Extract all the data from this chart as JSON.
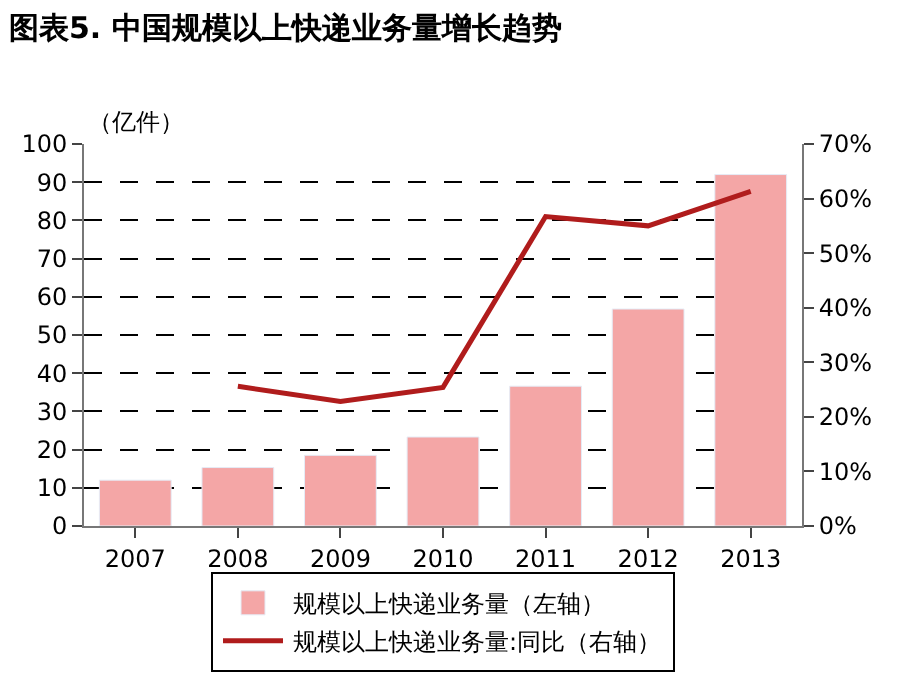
{
  "chart_data": {
    "type": "bar",
    "title": "图表5. 中国规模以上快递业务量增长趋势",
    "ylabel": "（亿件）",
    "categories": [
      "2007",
      "2008",
      "2009",
      "2010",
      "2011",
      "2012",
      "2013"
    ],
    "series": [
      {
        "name": "规模以上快递业务量（左轴）",
        "color": "#f4a6a6",
        "values": [
          12.0,
          15.3,
          18.5,
          23.3,
          36.6,
          56.8,
          92.0
        ]
      },
      {
        "name": "规模以上快递业务量:同比（右轴）",
        "type": "line",
        "axis": "y2",
        "color": "#b01c1c",
        "values": [
          null,
          25.6,
          22.8,
          25.4,
          56.7,
          55.0,
          61.3
        ]
      }
    ],
    "ylim": [
      0,
      100
    ],
    "yticks": [
      0,
      10,
      20,
      30,
      40,
      50,
      60,
      70,
      80,
      90,
      100
    ],
    "y2lim": [
      0,
      70
    ],
    "y2ticks": [
      {
        "value": 0,
        "label": "0%"
      },
      {
        "value": 10,
        "label": "10%"
      },
      {
        "value": 20,
        "label": "20%"
      },
      {
        "value": 30,
        "label": "30%"
      },
      {
        "value": 40,
        "label": "40%"
      },
      {
        "value": 50,
        "label": "50%"
      },
      {
        "value": 60,
        "label": "60%"
      },
      {
        "value": 70,
        "label": "70%"
      }
    ],
    "grid": "y",
    "legend": "bottom"
  }
}
